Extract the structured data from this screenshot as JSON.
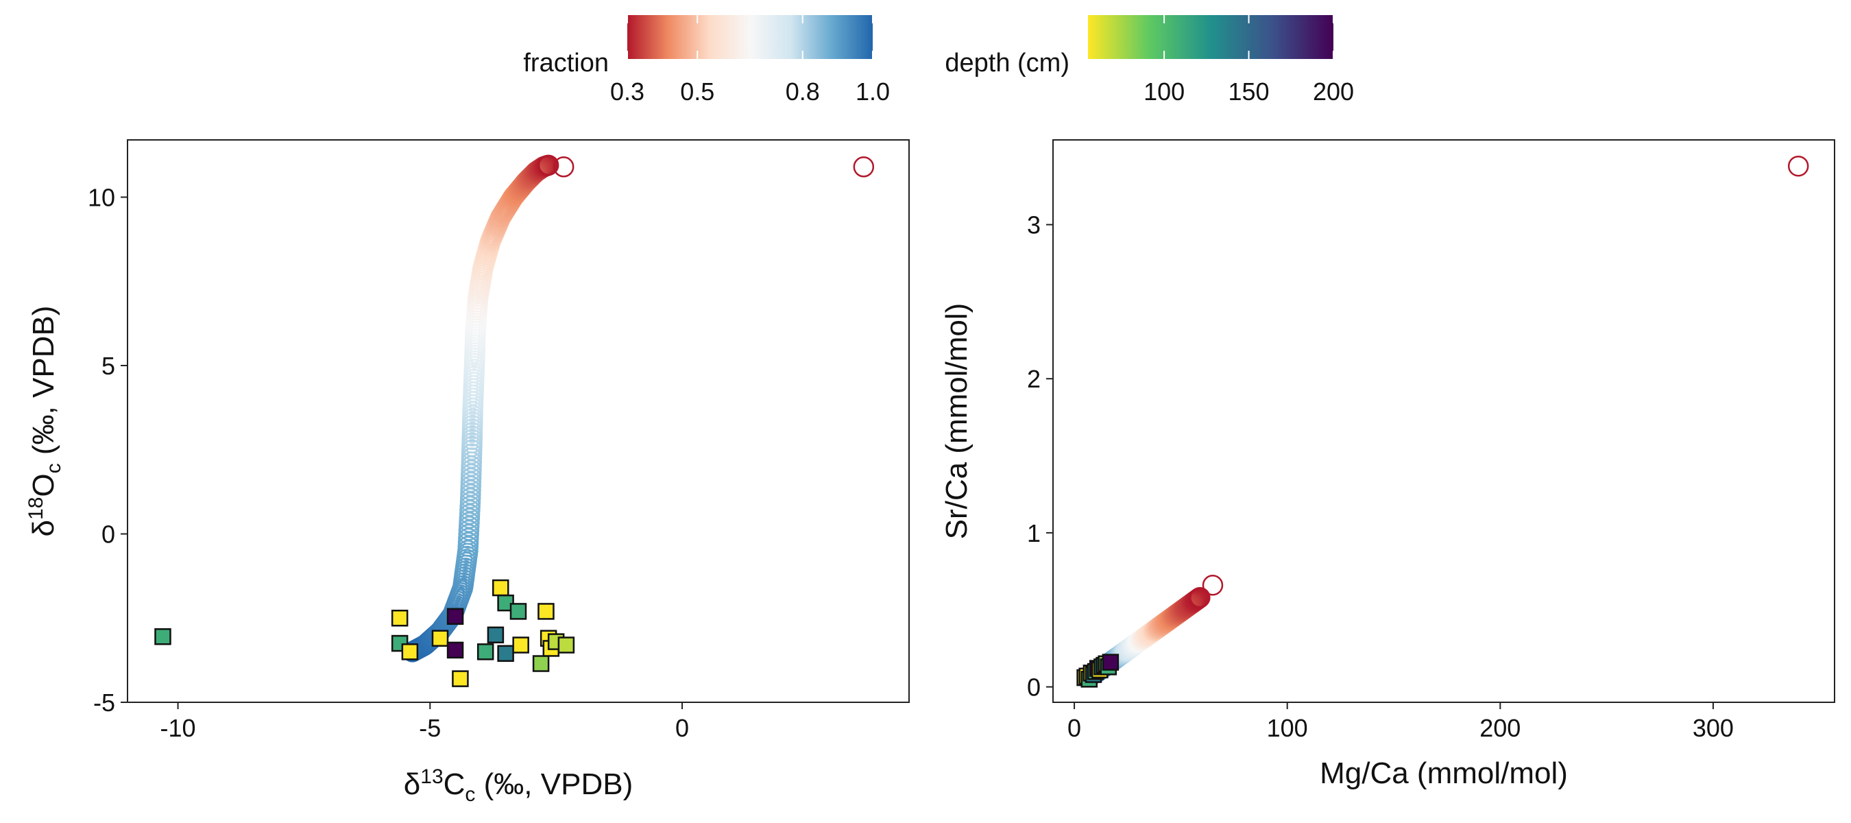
{
  "chart_data": [
    {
      "type": "scatter",
      "xlabel": "δ13Cc (‰, VPDB)",
      "ylabel": "δ18Oc (‰, VPDB)",
      "xlim": [
        -11,
        4.5
      ],
      "ylim": [
        -5,
        11.7
      ],
      "xticks": [
        -10,
        -5,
        0
      ],
      "yticks": [
        -5,
        0,
        5,
        10
      ],
      "xtick_labels": [
        "-10",
        "-5",
        "0"
      ],
      "ytick_labels": [
        "-5",
        "0",
        "5",
        "10"
      ],
      "grid": false,
      "model_curve": {
        "marker": "open-circle",
        "colored_by": "fraction",
        "x": [
          -5.35,
          -5.1,
          -4.8,
          -4.55,
          -4.35,
          -4.25,
          -4.2,
          -4.17,
          -4.15,
          -4.12,
          -4.1,
          -4.05,
          -3.95,
          -3.8,
          -3.6,
          -3.35,
          -3.1,
          -2.9,
          -2.75,
          -2.65
        ],
        "y": [
          -3.5,
          -3.3,
          -2.9,
          -2.4,
          -1.6,
          -0.5,
          1.0,
          2.5,
          3.8,
          5.0,
          6.0,
          7.0,
          7.9,
          8.7,
          9.4,
          10.0,
          10.45,
          10.75,
          10.9,
          10.95
        ],
        "fraction": [
          1.0,
          0.99,
          0.97,
          0.95,
          0.92,
          0.89,
          0.85,
          0.81,
          0.77,
          0.72,
          0.67,
          0.62,
          0.57,
          0.52,
          0.47,
          0.43,
          0.39,
          0.35,
          0.32,
          0.3
        ]
      },
      "endmember_points": {
        "marker": "open-circle",
        "points": [
          {
            "x": -2.35,
            "y": 10.9
          },
          {
            "x": 3.6,
            "y": 10.9
          }
        ]
      },
      "samples": {
        "marker": "filled-square",
        "colored_by": "depth (cm)",
        "points": [
          {
            "x": -10.3,
            "y": -3.05,
            "depth": 110
          },
          {
            "x": -5.6,
            "y": -2.5,
            "depth": 55
          },
          {
            "x": -5.6,
            "y": -3.25,
            "depth": 110
          },
          {
            "x": -5.4,
            "y": -3.5,
            "depth": 55
          },
          {
            "x": -4.8,
            "y": -3.1,
            "depth": 55
          },
          {
            "x": -4.5,
            "y": -3.45,
            "depth": 200
          },
          {
            "x": -4.5,
            "y": -2.45,
            "depth": 200
          },
          {
            "x": -4.4,
            "y": -4.3,
            "depth": 55
          },
          {
            "x": -3.9,
            "y": -3.5,
            "depth": 110
          },
          {
            "x": -3.7,
            "y": -3.0,
            "depth": 140
          },
          {
            "x": -3.6,
            "y": -1.6,
            "depth": 55
          },
          {
            "x": -3.5,
            "y": -2.05,
            "depth": 110
          },
          {
            "x": -3.5,
            "y": -3.55,
            "depth": 140
          },
          {
            "x": -3.25,
            "y": -2.3,
            "depth": 110
          },
          {
            "x": -3.2,
            "y": -3.3,
            "depth": 55
          },
          {
            "x": -2.8,
            "y": -3.85,
            "depth": 80
          },
          {
            "x": -2.7,
            "y": -2.3,
            "depth": 55
          },
          {
            "x": -2.65,
            "y": -3.1,
            "depth": 55
          },
          {
            "x": -2.6,
            "y": -3.4,
            "depth": 55
          },
          {
            "x": -2.5,
            "y": -3.2,
            "depth": 70
          },
          {
            "x": -2.3,
            "y": -3.3,
            "depth": 70
          }
        ]
      }
    },
    {
      "type": "scatter",
      "xlabel": "Mg/Ca (mmol/mol)",
      "ylabel": "Sr/Ca (mmol/mol)",
      "xlim": [
        -10,
        357
      ],
      "ylim": [
        -0.1,
        3.55
      ],
      "xticks": [
        0,
        100,
        200,
        300
      ],
      "yticks": [
        0,
        1,
        2,
        3
      ],
      "xtick_labels": [
        "0",
        "100",
        "200",
        "300"
      ],
      "ytick_labels": [
        "0",
        "1",
        "2",
        "3"
      ],
      "grid": false,
      "model_curve": {
        "marker": "open-circle",
        "colored_by": "fraction",
        "x": [
          10,
          13,
          16,
          19,
          22,
          25,
          28,
          31,
          34,
          37,
          40,
          43,
          46,
          49,
          52,
          55,
          57,
          59
        ],
        "y": [
          0.09,
          0.12,
          0.15,
          0.18,
          0.21,
          0.24,
          0.27,
          0.3,
          0.33,
          0.36,
          0.39,
          0.42,
          0.45,
          0.48,
          0.51,
          0.54,
          0.56,
          0.58
        ],
        "fraction": [
          1.0,
          0.97,
          0.93,
          0.88,
          0.82,
          0.76,
          0.7,
          0.64,
          0.58,
          0.53,
          0.48,
          0.44,
          0.41,
          0.38,
          0.35,
          0.33,
          0.31,
          0.3
        ]
      },
      "endmember_points": {
        "marker": "open-circle",
        "points": [
          {
            "x": 65,
            "y": 0.66
          },
          {
            "x": 340,
            "y": 3.38
          }
        ]
      },
      "samples": {
        "marker": "filled-square",
        "colored_by": "depth (cm)",
        "points": [
          {
            "x": 5,
            "y": 0.06,
            "depth": 55
          },
          {
            "x": 6,
            "y": 0.07,
            "depth": 55
          },
          {
            "x": 7,
            "y": 0.05,
            "depth": 110
          },
          {
            "x": 8,
            "y": 0.09,
            "depth": 55
          },
          {
            "x": 9,
            "y": 0.08,
            "depth": 140
          },
          {
            "x": 10,
            "y": 0.1,
            "depth": 110
          },
          {
            "x": 11,
            "y": 0.12,
            "depth": 200
          },
          {
            "x": 12,
            "y": 0.11,
            "depth": 55
          },
          {
            "x": 13,
            "y": 0.13,
            "depth": 110
          },
          {
            "x": 14,
            "y": 0.14,
            "depth": 140
          },
          {
            "x": 15,
            "y": 0.15,
            "depth": 80
          },
          {
            "x": 16,
            "y": 0.13,
            "depth": 110
          },
          {
            "x": 17,
            "y": 0.16,
            "depth": 200
          }
        ]
      }
    }
  ],
  "legends": {
    "fraction": {
      "title": "fraction",
      "tick_values": [
        0.3,
        0.5,
        0.8,
        1.0
      ],
      "tick_labels": [
        "0.3",
        "0.5",
        "0.8",
        "1.0"
      ],
      "range": [
        0.3,
        1.0
      ],
      "colors": [
        "#b2182b",
        "#ef8a62",
        "#fddbc7",
        "#f7f7f7",
        "#d1e5f0",
        "#67a9cf",
        "#2166ac"
      ]
    },
    "depth": {
      "title": "depth (cm)",
      "tick_values": [
        100,
        150,
        200
      ],
      "tick_labels": [
        "100",
        "150",
        "200"
      ],
      "range": [
        55,
        200
      ],
      "colors": [
        "#fde725",
        "#5ec962",
        "#21918c",
        "#3b528b",
        "#440154"
      ]
    }
  }
}
